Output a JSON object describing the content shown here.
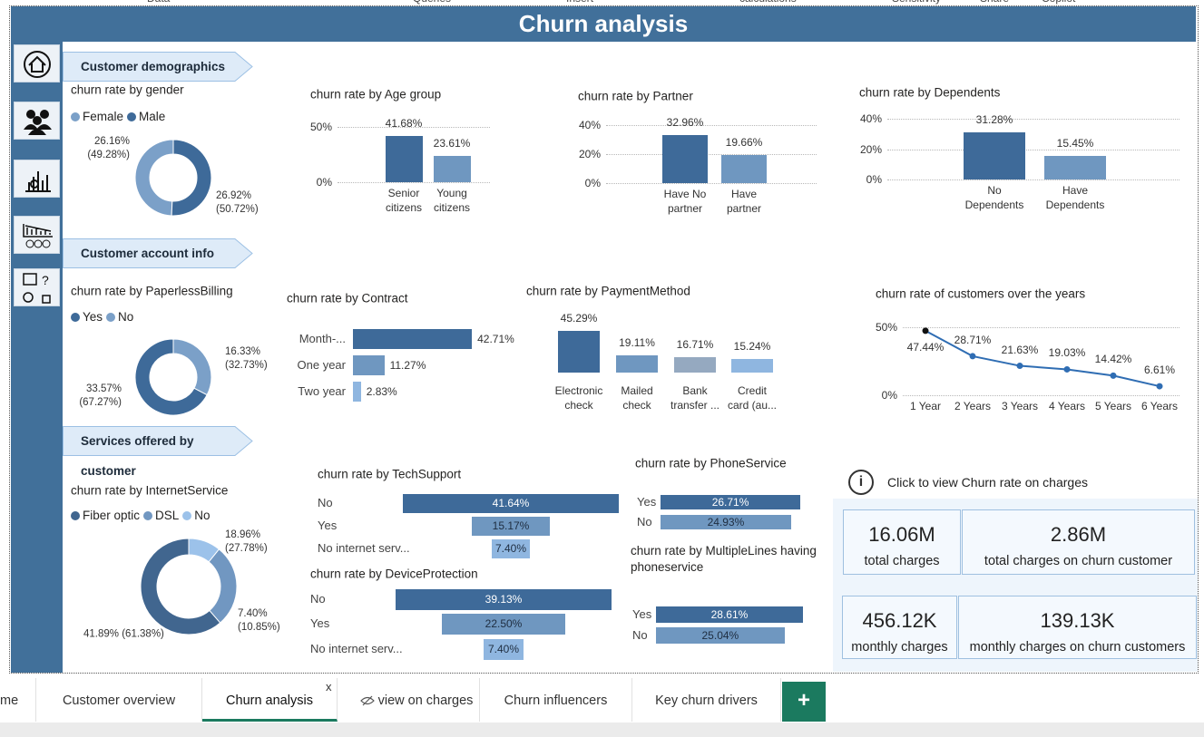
{
  "ribbon": [
    "Data",
    "Queries",
    "Insert",
    "calculations",
    "Sensitivity",
    "Share",
    "Copilot"
  ],
  "header": {
    "title": "Churn analysis"
  },
  "sections": [
    "Customer demographics",
    "Customer account info",
    "Services offered by customer"
  ],
  "chart_data": [
    {
      "type": "pie",
      "hole": true,
      "title": "churn rate by gender",
      "categories": [
        "Female",
        "Male"
      ],
      "colors": [
        "#7ba0c8",
        "#3e6a99"
      ],
      "values": [
        49.28,
        50.72
      ],
      "value_labels": [
        "(49.28%)",
        "(50.72%)"
      ],
      "rates": [
        26.16,
        26.92
      ],
      "rate_labels": [
        "26.16%",
        "26.92%"
      ]
    },
    {
      "type": "bar",
      "title": "churn rate by Age group",
      "categories": [
        "Senior\ncitizens",
        "Young\ncitizens"
      ],
      "colors": [
        "#3e6a99",
        "#6f97c0"
      ],
      "values": [
        41.68,
        23.61
      ],
      "value_labels": [
        "41.68%",
        "23.61%"
      ],
      "ylim": [
        0,
        60
      ],
      "yticks": [
        {
          "value": 0,
          "label": "0%"
        },
        {
          "value": 50,
          "label": "50%"
        }
      ],
      "grid": true
    },
    {
      "type": "bar",
      "title": "churn rate by Partner",
      "categories": [
        "Have No\npartner",
        "Have\npartner"
      ],
      "colors": [
        "#3e6a99",
        "#6f97c0"
      ],
      "values": [
        32.96,
        19.66
      ],
      "value_labels": [
        "32.96%",
        "19.66%"
      ],
      "ylim": [
        0,
        40
      ],
      "yticks": [
        {
          "value": 0,
          "label": "0%"
        },
        {
          "value": 20,
          "label": "20%"
        },
        {
          "value": 40,
          "label": "40%"
        }
      ],
      "grid": true
    },
    {
      "type": "bar",
      "title": "churn rate by Dependents",
      "categories": [
        "No\nDependents",
        "Have\nDependents"
      ],
      "colors": [
        "#3e6a99",
        "#6f97c0"
      ],
      "values": [
        31.28,
        15.45
      ],
      "value_labels": [
        "31.28%",
        "15.45%"
      ],
      "ylim": [
        0,
        40
      ],
      "yticks": [
        {
          "value": 0,
          "label": "0%"
        },
        {
          "value": 20,
          "label": "20%"
        },
        {
          "value": 40,
          "label": "40%"
        }
      ],
      "grid": true
    },
    {
      "type": "pie",
      "hole": true,
      "title": "churn rate by PaperlessBilling",
      "categories": [
        "Yes",
        "No"
      ],
      "colors": [
        "#3e6a99",
        "#7ba0c8"
      ],
      "values": [
        67.27,
        32.73
      ],
      "value_labels": [
        "(67.27%)",
        "(32.73%)"
      ],
      "rates": [
        33.57,
        16.33
      ],
      "rate_labels": [
        "33.57%",
        "16.33%"
      ]
    },
    {
      "type": "bar",
      "orientation": "horizontal",
      "title": "churn rate by Contract",
      "categories": [
        "Month-...",
        "One year",
        "Two year"
      ],
      "colors": [
        "#3e6a99",
        "#6f97c0",
        "#8fb6e0"
      ],
      "values": [
        42.71,
        11.27,
        2.83
      ],
      "value_labels": [
        "42.71%",
        "11.27%",
        "2.83%"
      ]
    },
    {
      "type": "bar",
      "title": "churn rate by PaymentMethod",
      "categories": [
        "Electronic\ncheck",
        "Mailed\ncheck",
        "Bank\ntransfer ...",
        "Credit\ncard (au..."
      ],
      "colors": [
        "#3e6a99",
        "#6f97c0",
        "#95a9c0",
        "#8fb6e0"
      ],
      "values": [
        45.29,
        19.11,
        16.71,
        15.24
      ],
      "value_labels": [
        "45.29%",
        "19.11%",
        "16.71%",
        "15.24%"
      ]
    },
    {
      "type": "line",
      "title": "churn rate of customers over the years",
      "categories": [
        "1 Year",
        "2 Years",
        "3 Years",
        "4 Years",
        "5 Years",
        "6 Years"
      ],
      "color": "#2f6db3",
      "values": [
        47.44,
        28.71,
        21.63,
        19.03,
        14.42,
        6.61
      ],
      "value_labels": [
        "47.44%",
        "28.71%",
        "21.63%",
        "19.03%",
        "14.42%",
        "6.61%"
      ],
      "ylim": [
        0,
        55
      ],
      "yticks": [
        {
          "value": 0,
          "label": "0%"
        },
        {
          "value": 50,
          "label": "50%"
        }
      ],
      "grid": true
    },
    {
      "type": "pie",
      "hole": true,
      "title": "churn rate by InternetService",
      "categories": [
        "Fiber optic",
        "DSL",
        "No"
      ],
      "colors": [
        "#41668f",
        "#7197c1",
        "#9cc2ea"
      ],
      "values": [
        61.38,
        27.78,
        10.85
      ],
      "value_labels": [
        "(61.38%)",
        "(27.78%)",
        "(10.85%)"
      ],
      "rates": [
        41.89,
        18.96,
        7.4
      ],
      "rate_labels": [
        "41.89%",
        "18.96%",
        "7.40%"
      ]
    },
    {
      "type": "bar",
      "orientation": "horizontal",
      "align": "center",
      "title": "churn rate by TechSupport",
      "categories": [
        "No",
        "Yes",
        "No internet serv..."
      ],
      "colors": [
        "#3e6a99",
        "#6f97c0",
        "#8fb6e0"
      ],
      "values": [
        41.64,
        15.17,
        7.4
      ],
      "value_labels": [
        "41.64%",
        "15.17%",
        "7.40%"
      ]
    },
    {
      "type": "bar",
      "orientation": "horizontal",
      "title": "churn rate by PhoneService",
      "categories": [
        "Yes",
        "No"
      ],
      "colors": [
        "#3e6a99",
        "#6f97c0"
      ],
      "values": [
        26.71,
        24.93
      ],
      "value_labels": [
        "26.71%",
        "24.93%"
      ]
    },
    {
      "type": "bar",
      "orientation": "horizontal",
      "align": "center",
      "title": "churn rate by DeviceProtection",
      "categories": [
        "No",
        "Yes",
        "No internet serv..."
      ],
      "colors": [
        "#3e6a99",
        "#6f97c0",
        "#8fb6e0"
      ],
      "values": [
        39.13,
        22.5,
        7.4
      ],
      "value_labels": [
        "39.13%",
        "22.50%",
        "7.40%"
      ]
    },
    {
      "type": "bar",
      "orientation": "horizontal",
      "title": "churn rate by MultipleLines having phoneservice",
      "categories": [
        "Yes",
        "No"
      ],
      "colors": [
        "#3e6a99",
        "#6f97c0"
      ],
      "values": [
        28.61,
        25.04
      ],
      "value_labels": [
        "28.61%",
        "25.04%"
      ]
    }
  ],
  "info": {
    "icon": "i",
    "text": "Click to view Churn rate on charges"
  },
  "cards": [
    {
      "value": "16.06M",
      "label": "total charges"
    },
    {
      "value": "2.86M",
      "label": "total charges on churn customer"
    },
    {
      "value": "456.12K",
      "label": "monthly charges"
    },
    {
      "value": "139.13K",
      "label": "monthly charges on churn customers"
    }
  ],
  "tabs": {
    "items": [
      "me",
      "Customer overview",
      "Churn analysis",
      "view on charges",
      "Churn influencers",
      "Key churn drivers"
    ],
    "close": "x",
    "add": "+"
  }
}
